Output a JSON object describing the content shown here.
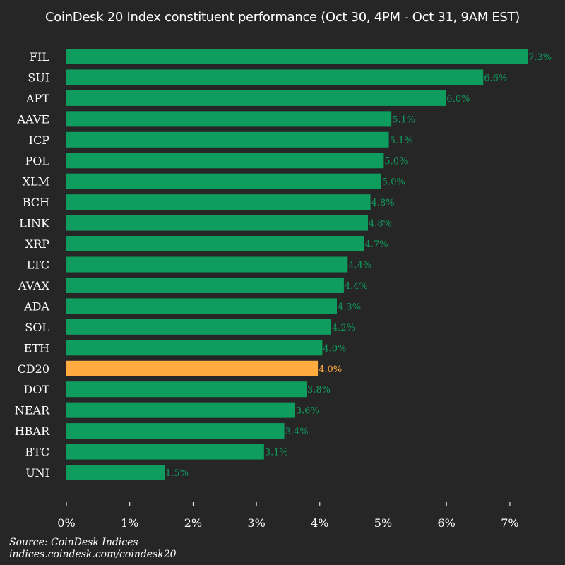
{
  "chart_data": {
    "type": "bar",
    "orientation": "horizontal",
    "title": "CoinDesk 20 Index constituent performance (Oct 30, 4PM - Oct 31, 9AM EST)",
    "categories": [
      "FIL",
      "SUI",
      "APT",
      "AAVE",
      "ICP",
      "POL",
      "XLM",
      "BCH",
      "LINK",
      "XRP",
      "LTC",
      "AVAX",
      "ADA",
      "SOL",
      "ETH",
      "CD20",
      "DOT",
      "NEAR",
      "HBAR",
      "BTC",
      "UNI"
    ],
    "values": [
      7.28,
      6.58,
      5.99,
      5.13,
      5.09,
      5.01,
      4.97,
      4.8,
      4.76,
      4.7,
      4.44,
      4.38,
      4.27,
      4.18,
      4.04,
      3.97,
      3.79,
      3.61,
      3.44,
      3.12,
      1.55
    ],
    "data_labels": [
      "7.3%",
      "6.6%",
      "6.0%",
      "5.1%",
      "5.1%",
      "5.0%",
      "5.0%",
      "4.8%",
      "4.8%",
      "4.7%",
      "4.4%",
      "4.4%",
      "4.3%",
      "4.2%",
      "4.0%",
      "4.0%",
      "3.8%",
      "3.6%",
      "3.4%",
      "3.1%",
      "1.5%"
    ],
    "highlight": "CD20",
    "xticks": [
      "0%",
      "1%",
      "2%",
      "3%",
      "4%",
      "5%",
      "6%",
      "7%"
    ],
    "xlim": [
      0,
      7.5
    ],
    "grid": false,
    "colors": {
      "bar": "#0f9d5f",
      "highlight": "#ffab40",
      "background": "#262626",
      "text": "#ffffff"
    }
  },
  "source": {
    "line1": "Source: CoinDesk Indices",
    "line2": "indices.coindesk.com/coindesk20"
  }
}
